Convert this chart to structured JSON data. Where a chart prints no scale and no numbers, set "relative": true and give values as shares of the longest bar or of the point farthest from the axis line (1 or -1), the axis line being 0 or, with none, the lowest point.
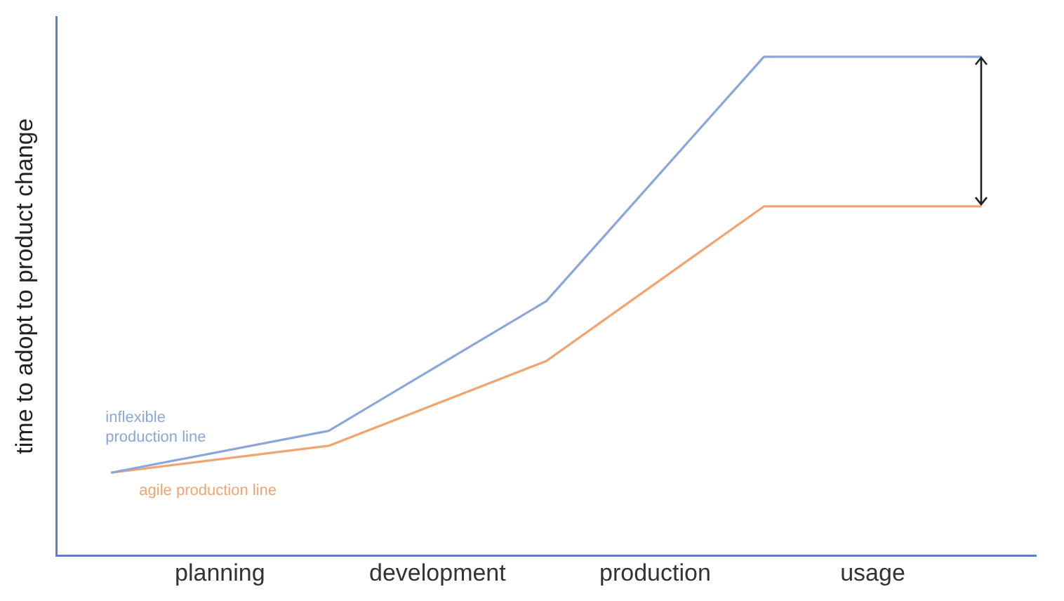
{
  "chart_data": {
    "type": "line",
    "relative": true,
    "ylabel": "time to adopt to product change",
    "categories": [
      null,
      "planning",
      null,
      "development",
      null,
      "production",
      null,
      "usage",
      null
    ],
    "series": [
      {
        "name": "inflexible production line",
        "color": "#8aa6dc",
        "values": [
          0.166,
          null,
          0.25,
          null,
          0.51,
          null,
          1,
          null,
          1
        ]
      },
      {
        "name": "agile production line",
        "color": "#f2a46e",
        "values": [
          0.166,
          null,
          0.22,
          null,
          0.39,
          null,
          0.7,
          null,
          0.7
        ]
      }
    ],
    "grid": false,
    "legend": false,
    "marker": "none",
    "line_style": "solid"
  }
}
